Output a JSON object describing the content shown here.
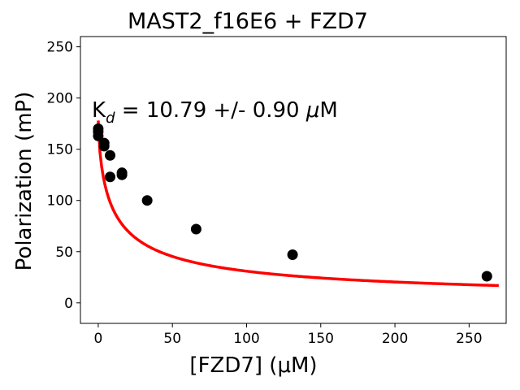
{
  "chart_data": {
    "type": "scatter",
    "title": "MAST2_f16E6 + FZD7",
    "xlabel": "[FZD7] (μM)",
    "ylabel": "Polarization (mP)",
    "xlim": [
      -12,
      275
    ],
    "ylim": [
      -20,
      260
    ],
    "xticks": [
      0,
      50,
      100,
      150,
      200,
      250
    ],
    "yticks": [
      0,
      50,
      100,
      150,
      200,
      250
    ],
    "annotation": {
      "k": "K",
      "sub": "d",
      "rest": " = 10.79 +/- 0.90 ",
      "mu": "μ",
      "unit": "M"
    },
    "series": [
      {
        "name": "data",
        "kind": "points",
        "color": "#000000",
        "points": [
          {
            "x": 0,
            "y": 170
          },
          {
            "x": 0,
            "y": 167
          },
          {
            "x": 0,
            "y": 163
          },
          {
            "x": 4,
            "y": 156
          },
          {
            "x": 4,
            "y": 153
          },
          {
            "x": 8,
            "y": 144
          },
          {
            "x": 8,
            "y": 123
          },
          {
            "x": 16,
            "y": 127
          },
          {
            "x": 16,
            "y": 125
          },
          {
            "x": 33,
            "y": 100
          },
          {
            "x": 66,
            "y": 72
          },
          {
            "x": 131,
            "y": 47
          },
          {
            "x": 262,
            "y": 26
          }
        ]
      },
      {
        "name": "fit",
        "kind": "curve",
        "color": "#ff0000",
        "model": {
          "top": 178,
          "bottom": 0,
          "kd": 10.79,
          "n": 0.7
        },
        "x_range": [
          0,
          270
        ]
      }
    ]
  }
}
